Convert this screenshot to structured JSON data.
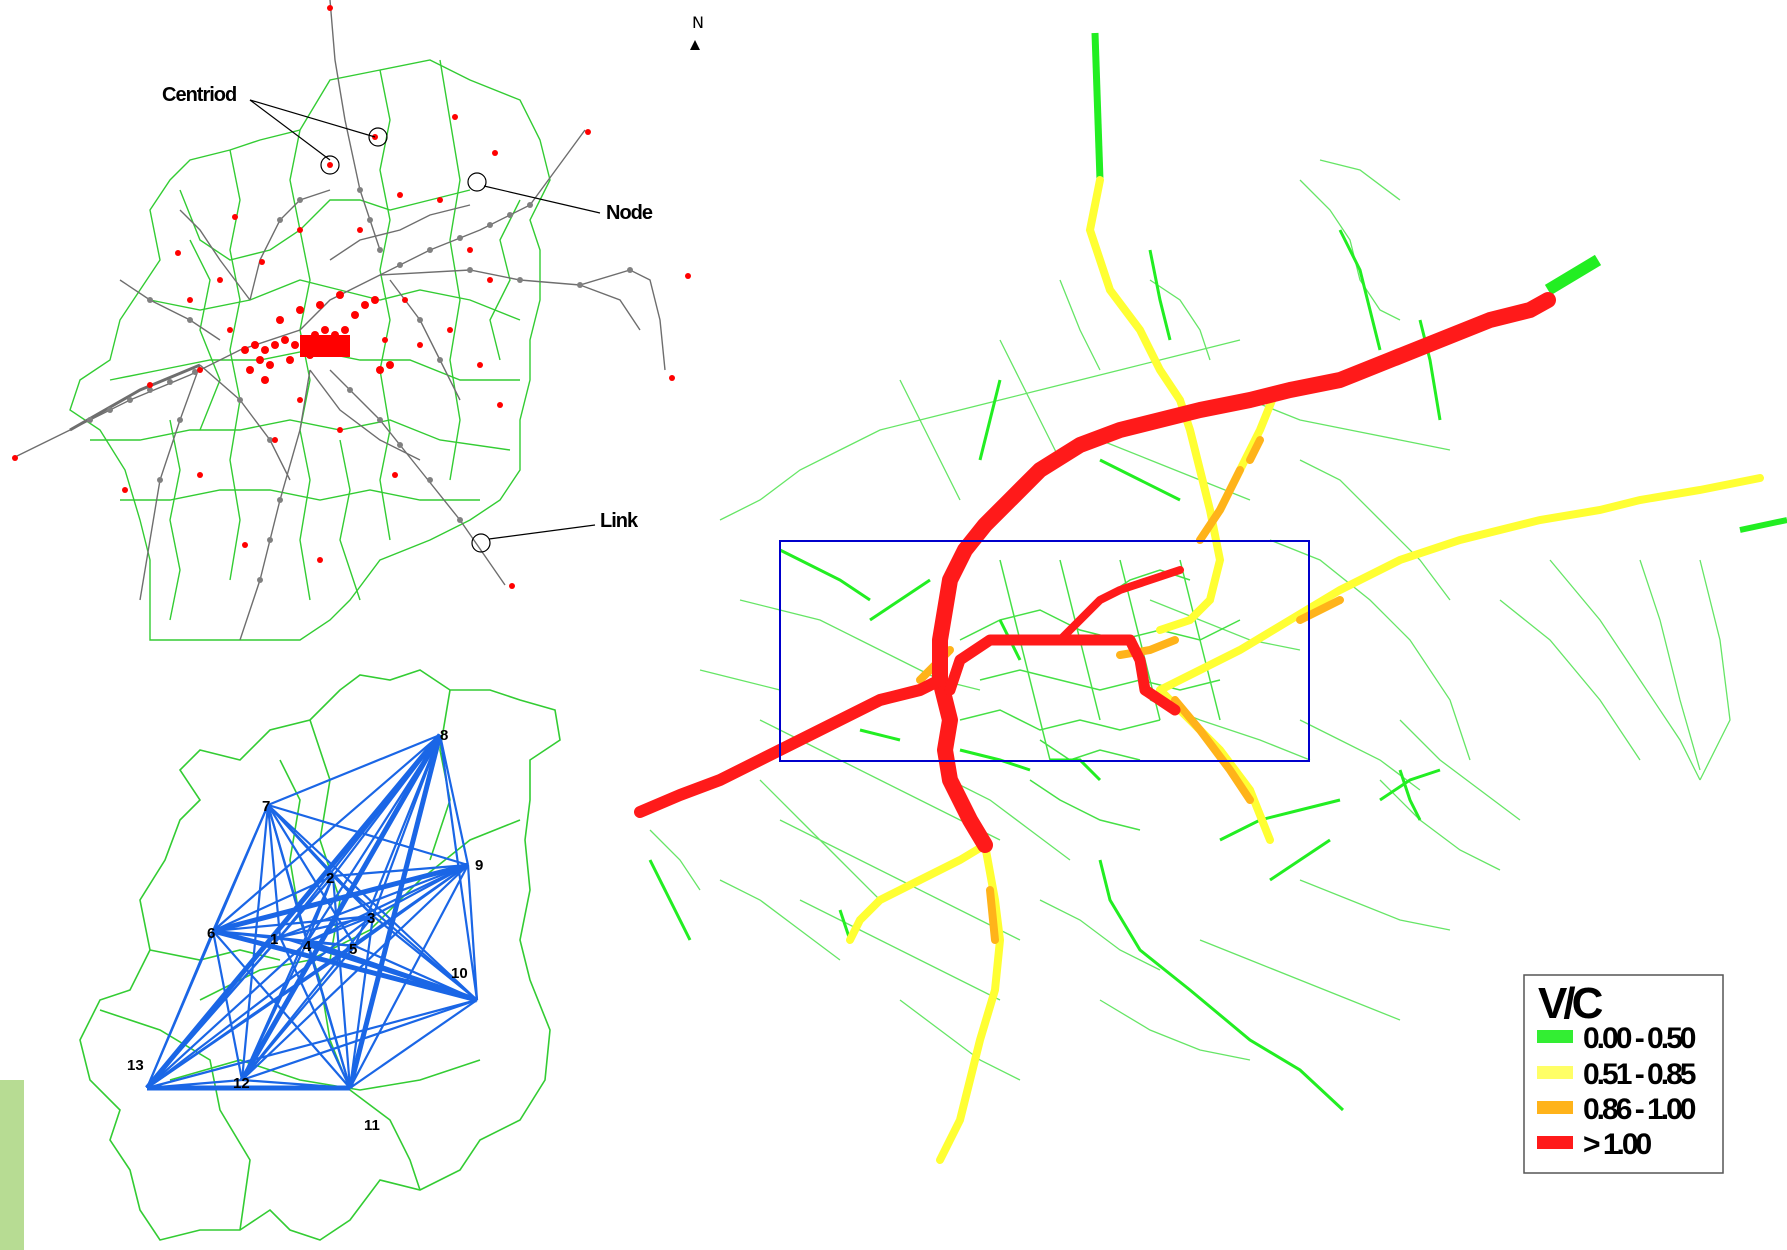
{
  "north_label": "N",
  "top_map": {
    "callouts": {
      "centroid": "Centriod",
      "node": "Node",
      "link": "Link"
    },
    "colors": {
      "link": "#33cc33",
      "road": "#777777",
      "centroid": "#ff0000",
      "node": "#808080"
    }
  },
  "od_map": {
    "zones": [
      "1",
      "2",
      "3",
      "4",
      "5",
      "6",
      "7",
      "8",
      "9",
      "10",
      "11",
      "12",
      "13"
    ],
    "colors": {
      "desire_line": "#1a66e6",
      "boundary": "#33cc33"
    }
  },
  "vc_map": {
    "colors": {
      "study_area_box": "#0000cc"
    },
    "legend": {
      "title": "V/C",
      "items": [
        {
          "label": "0.00 - 0.50",
          "color": "#33ee33"
        },
        {
          "label": "0.51 - 0.85",
          "color": "#ffff66"
        },
        {
          "label": "0.86 - 1.00",
          "color": "#ffb31a"
        },
        {
          "label": "> 1.00",
          "color": "#ff1a1a"
        }
      ]
    }
  }
}
